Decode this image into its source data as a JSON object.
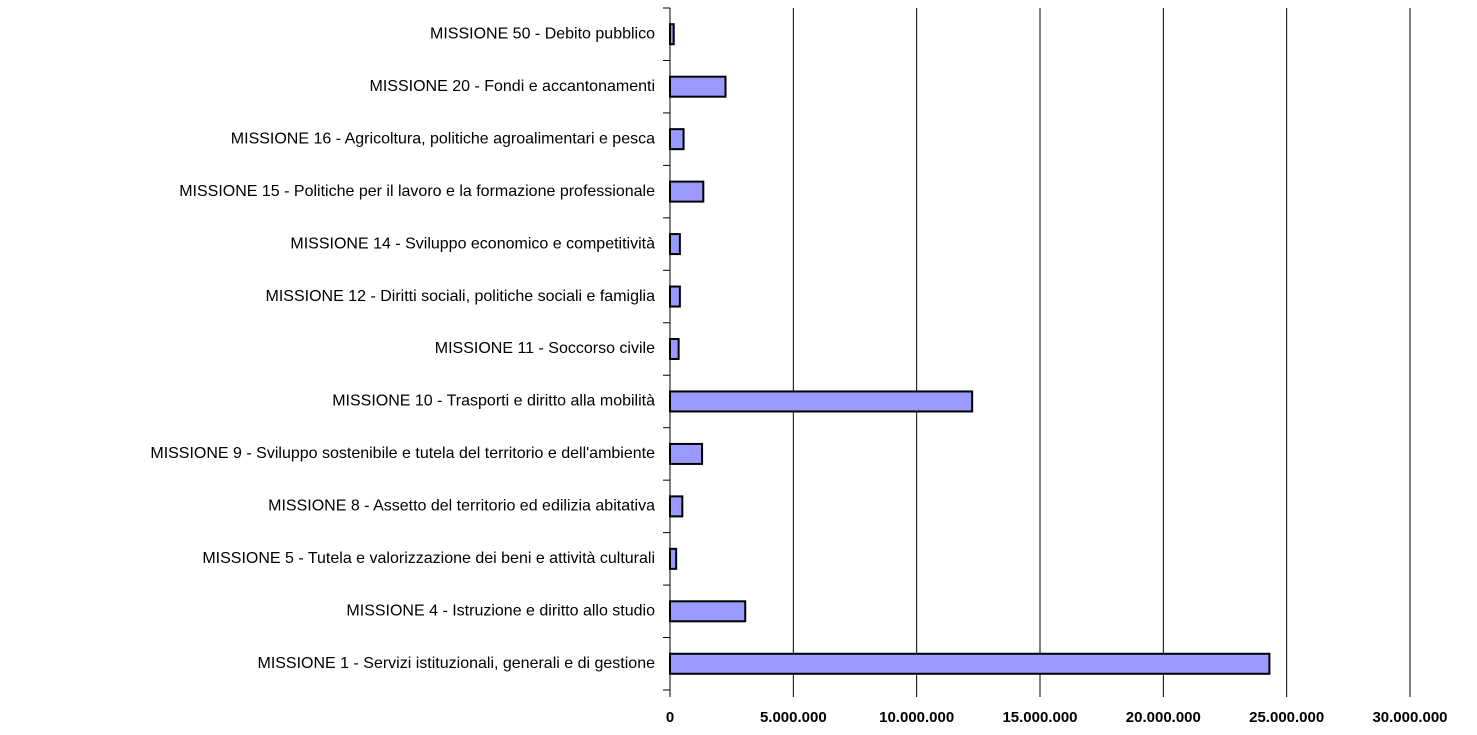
{
  "chart_data": {
    "type": "bar",
    "orientation": "horizontal",
    "categories": [
      "MISSIONE 50 - Debito pubblico",
      "MISSIONE 20 - Fondi e accantonamenti",
      "MISSIONE 16 - Agricoltura, politiche agroalimentari e pesca",
      "MISSIONE 15 - Politiche per il lavoro e la formazione professionale",
      "MISSIONE 14 - Sviluppo economico e competitività",
      "MISSIONE 12 - Diritti sociali, politiche sociali e famiglia",
      "MISSIONE 11  - Soccorso civile",
      "MISSIONE 10 - Trasporti e diritto alla mobilità",
      "MISSIONE 9  - Sviluppo sostenibile e tutela del territorio e dell'ambiente",
      "MISSIONE 8  - Assetto del territorio ed edilizia abitativa",
      "MISSIONE 5 - Tutela e valorizzazione dei beni e attività culturali",
      "MISSIONE 4  - Istruzione e diritto allo studio",
      "MISSIONE 1  - Servizi istituzionali, generali e di gestione"
    ],
    "values": [
      150000,
      2250000,
      550000,
      1350000,
      400000,
      400000,
      350000,
      12250000,
      1300000,
      500000,
      250000,
      3050000,
      24300000
    ],
    "color": "#9999ff",
    "xlim": [
      0,
      30000000
    ],
    "xticks": [
      0,
      {
        "value": 5000000,
        "label": "5.000.000"
      },
      {
        "value": 10000000,
        "label": "10.000.000"
      },
      {
        "value": 15000000,
        "label": "15.000.000"
      },
      {
        "value": 20000000,
        "label": "20.000.000"
      },
      {
        "value": 25000000,
        "label": "25.000.000"
      },
      {
        "value": 30000000,
        "label": "30.000.000"
      }
    ],
    "grid": true
  }
}
